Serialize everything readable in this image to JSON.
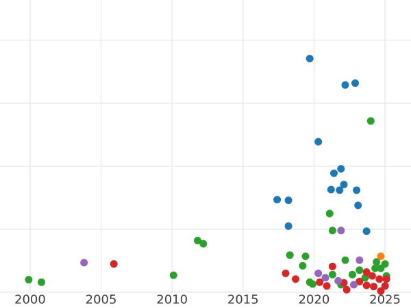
{
  "page": {
    "background": "#ffffff"
  },
  "chart_data": {
    "type": "scatter",
    "title": "",
    "xlabel": "",
    "ylabel": "",
    "xlim": [
      1997.88,
      2026.83
    ],
    "ylim": [
      -0.25,
      4.64
    ],
    "xticks": [
      2000,
      2005,
      2010,
      2015,
      2020,
      2025
    ],
    "xticklabels": [
      "2000",
      "2005",
      "2010",
      "2015",
      "2020",
      "2025"
    ],
    "yticks": [
      0,
      1,
      2,
      3,
      4
    ],
    "yticklabels": [],
    "grid": true,
    "grid_color": "#e8e8e8",
    "tick_label_color": "#3b3b3b",
    "tick_font_size": 18,
    "marker_radius": 5.5,
    "legend_position": "none",
    "y_units": "grid units (y gridlines unlabeled; bottom gridline = 0, one unit per gridline)",
    "series": [
      {
        "name": "blue",
        "color": "#1f77b4",
        "points": [
          [
            2019.7,
            3.71
          ],
          [
            2022.2,
            3.29
          ],
          [
            2022.9,
            3.32
          ],
          [
            2020.3,
            2.39
          ],
          [
            2021.9,
            1.96
          ],
          [
            2021.4,
            1.89
          ],
          [
            2022.1,
            1.71
          ],
          [
            2021.2,
            1.63
          ],
          [
            2021.8,
            1.62
          ],
          [
            2023.0,
            1.62
          ],
          [
            2017.4,
            1.47
          ],
          [
            2018.2,
            1.46
          ],
          [
            2023.1,
            1.38
          ],
          [
            2018.2,
            1.05
          ],
          [
            2023.7,
            0.97
          ]
        ]
      },
      {
        "name": "green",
        "color": "#2ca02c",
        "points": [
          [
            1999.9,
            0.2
          ],
          [
            2000.8,
            0.16
          ],
          [
            2010.1,
            0.27
          ],
          [
            2011.8,
            0.82
          ],
          [
            2012.2,
            0.77
          ],
          [
            2024.0,
            2.72
          ],
          [
            2021.1,
            1.25
          ],
          [
            2021.3,
            0.98
          ],
          [
            2018.3,
            0.59
          ],
          [
            2019.4,
            0.57
          ],
          [
            2019.2,
            0.42
          ],
          [
            2022.2,
            0.51
          ],
          [
            2021.3,
            0.28
          ],
          [
            2019.7,
            0.16
          ],
          [
            2019.9,
            0.13
          ],
          [
            2021.9,
            0.12
          ],
          [
            2022.7,
            0.28
          ],
          [
            2023.2,
            0.35
          ],
          [
            2023.6,
            0.23
          ],
          [
            2024.3,
            0.38
          ],
          [
            2024.7,
            0.38
          ],
          [
            2024.4,
            0.48
          ],
          [
            2025.0,
            0.45
          ],
          [
            2025.1,
            0.26
          ]
        ]
      },
      {
        "name": "red",
        "color": "#d62728",
        "points": [
          [
            2005.9,
            0.45
          ],
          [
            2018.0,
            0.3
          ],
          [
            2018.7,
            0.21
          ],
          [
            2021.3,
            0.41
          ],
          [
            2020.4,
            0.16
          ],
          [
            2020.9,
            0.1
          ],
          [
            2022.3,
            0.04
          ],
          [
            2022.1,
            0.15
          ],
          [
            2023.7,
            0.32
          ],
          [
            2023.2,
            0.17
          ],
          [
            2023.7,
            0.11
          ],
          [
            2024.2,
            0.09
          ],
          [
            2024.1,
            0.26
          ],
          [
            2024.6,
            0.21
          ],
          [
            2025.1,
            0.21
          ],
          [
            2025.0,
            0.1
          ],
          [
            2024.7,
            0.02
          ]
        ]
      },
      {
        "name": "purple",
        "color": "#9467bd",
        "points": [
          [
            2003.8,
            0.47
          ],
          [
            2021.9,
            0.98
          ],
          [
            2020.3,
            0.3
          ],
          [
            2020.8,
            0.23
          ],
          [
            2021.7,
            0.18
          ],
          [
            2022.8,
            0.12
          ],
          [
            2023.2,
            0.51
          ]
        ]
      },
      {
        "name": "orange",
        "color": "#ff7f0e",
        "points": [
          [
            2024.7,
            0.57
          ]
        ]
      }
    ]
  }
}
